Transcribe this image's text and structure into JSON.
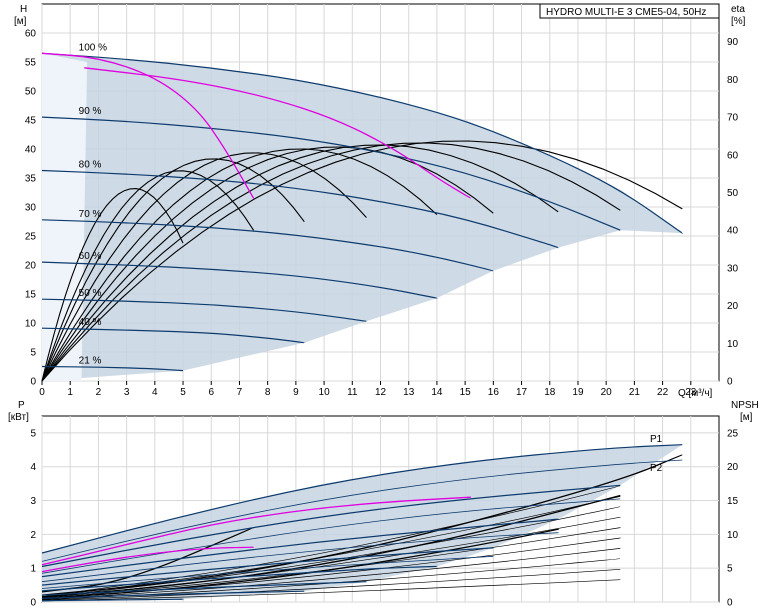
{
  "chart_data": [
    {
      "type": "line",
      "panel": "head-flow",
      "title": "HYDRO MULTI-E 3 CME5-04, 50Hz",
      "ylabel_left": "H",
      "ylabel_left_unit": "[м]",
      "ylabel_right": "eta",
      "ylabel_right_unit": "[%]",
      "xlabel": "Q [м³/ч]",
      "xlim": [
        0,
        24
      ],
      "ylim_left": [
        0,
        65
      ],
      "ylim_right": [
        0,
        100
      ],
      "x_ticks": [
        0,
        1,
        2,
        3,
        4,
        5,
        6,
        7,
        8,
        9,
        10,
        11,
        12,
        13,
        14,
        15,
        16,
        17,
        18,
        19,
        20,
        21,
        22,
        23
      ],
      "y_ticks_left": [
        0,
        5,
        10,
        15,
        20,
        25,
        30,
        35,
        40,
        45,
        50,
        55,
        60
      ],
      "y_ticks_right": [
        0,
        10,
        20,
        30,
        40,
        50,
        60,
        70,
        80,
        90
      ],
      "grid": true,
      "colors": {
        "pump": "#0d3b6e",
        "fill": "#c5d3e2",
        "system": "#e000e0",
        "eta": "#000000"
      },
      "speed_curves": [
        {
          "label": "100 %",
          "points": [
            [
              0,
              56.5
            ],
            [
              3,
              55.5
            ],
            [
              6,
              54
            ],
            [
              9,
              52
            ],
            [
              12,
              49
            ],
            [
              15,
              45
            ],
            [
              18,
              39
            ],
            [
              20.5,
              33
            ],
            [
              22.7,
              25.5
            ]
          ]
        },
        {
          "label": "90 %",
          "points": [
            [
              0,
              45.5
            ],
            [
              3,
              44.8
            ],
            [
              6,
              43.6
            ],
            [
              9,
              42
            ],
            [
              12,
              39.5
            ],
            [
              15,
              36
            ],
            [
              18,
              31
            ],
            [
              20.5,
              26
            ]
          ]
        },
        {
          "label": "80 %",
          "points": [
            [
              0,
              36.3
            ],
            [
              3,
              35.7
            ],
            [
              6,
              34.8
            ],
            [
              9,
              33.3
            ],
            [
              12,
              31
            ],
            [
              15,
              28
            ],
            [
              18,
              23.5
            ],
            [
              18.3,
              23
            ]
          ]
        },
        {
          "label": "70 %",
          "points": [
            [
              0,
              27.8
            ],
            [
              3,
              27.3
            ],
            [
              6,
              26.5
            ],
            [
              9,
              25.2
            ],
            [
              12,
              23.2
            ],
            [
              14,
              21.4
            ],
            [
              16,
              19
            ]
          ]
        },
        {
          "label": "60 %",
          "points": [
            [
              0,
              20.5
            ],
            [
              3,
              20
            ],
            [
              6,
              19.3
            ],
            [
              9,
              18.2
            ],
            [
              12,
              16.2
            ],
            [
              14,
              14.3
            ]
          ]
        },
        {
          "label": "50 %",
          "points": [
            [
              0,
              14.1
            ],
            [
              3,
              13.8
            ],
            [
              6,
              13.2
            ],
            [
              9,
              12
            ],
            [
              11.5,
              10.3
            ]
          ]
        },
        {
          "label": "40 %",
          "points": [
            [
              0,
              9.1
            ],
            [
              3,
              8.8
            ],
            [
              6,
              8.3
            ],
            [
              8,
              7.4
            ],
            [
              9.3,
              6.6
            ]
          ]
        },
        {
          "label": "21 %",
          "points": [
            [
              0,
              2.5
            ],
            [
              2,
              2.4
            ],
            [
              4,
              2.1
            ],
            [
              5,
              1.8
            ]
          ]
        }
      ],
      "system_curves": [
        {
          "points": [
            [
              0,
              56.5
            ],
            [
              2,
              55.8
            ],
            [
              4,
              52.5
            ],
            [
              5.5,
              47
            ],
            [
              6.5,
              40
            ],
            [
              7.5,
              31.5
            ]
          ]
        },
        {
          "points": [
            [
              1.5,
              54
            ],
            [
              5,
              52
            ],
            [
              8,
              49
            ],
            [
              10.5,
              45
            ],
            [
              12.5,
              40
            ],
            [
              14,
              35
            ],
            [
              15.2,
              31.5
            ]
          ]
        }
      ],
      "eta_curves": [
        {
          "peak": 48.5,
          "qmax": 5.0
        },
        {
          "peak": 53,
          "qmax": 7.5
        },
        {
          "peak": 56,
          "qmax": 9.3
        },
        {
          "peak": 57.5,
          "qmax": 11.5
        },
        {
          "peak": 58.5,
          "qmax": 14
        },
        {
          "peak": 59,
          "qmax": 16
        },
        {
          "peak": 59.5,
          "qmax": 18.3
        },
        {
          "peak": 60,
          "qmax": 20.5
        },
        {
          "peak": 60.5,
          "qmax": 22.7
        }
      ]
    },
    {
      "type": "line",
      "panel": "power-npsh",
      "ylabel_left": "P",
      "ylabel_left_unit": "[кВт]",
      "ylabel_right": "NPSH",
      "ylabel_right_unit": "[м]",
      "xlim": [
        0,
        24
      ],
      "ylim_left": [
        0,
        5.5
      ],
      "ylim_right": [
        0,
        27.5
      ],
      "y_ticks_left": [
        0,
        1,
        2,
        3,
        4,
        5
      ],
      "y_ticks_right": [
        0,
        5,
        10,
        15,
        20,
        25
      ],
      "grid": true,
      "series_labels": [
        "P1",
        "P2"
      ],
      "p1_curves": [
        {
          "points": [
            [
              0,
              1.45
            ],
            [
              5,
              2.55
            ],
            [
              10,
              3.5
            ],
            [
              15,
              4.15
            ],
            [
              20,
              4.55
            ],
            [
              22.7,
              4.65
            ]
          ]
        },
        {
          "points": [
            [
              0,
              1.05
            ],
            [
              5,
              1.85
            ],
            [
              10,
              2.55
            ],
            [
              15,
              3.05
            ],
            [
              20.5,
              3.45
            ]
          ]
        },
        {
          "points": [
            [
              0,
              0.75
            ],
            [
              5,
              1.3
            ],
            [
              10,
              1.8
            ],
            [
              15,
              2.2
            ],
            [
              18.3,
              2.45
            ]
          ]
        },
        {
          "points": [
            [
              0,
              0.5
            ],
            [
              5,
              0.9
            ],
            [
              10,
              1.25
            ],
            [
              14,
              1.5
            ],
            [
              16,
              1.6
            ]
          ]
        },
        {
          "points": [
            [
              0,
              0.33
            ],
            [
              4,
              0.58
            ],
            [
              8,
              0.8
            ],
            [
              12,
              1.0
            ],
            [
              14,
              1.05
            ]
          ]
        },
        {
          "points": [
            [
              0,
              0.2
            ],
            [
              4,
              0.36
            ],
            [
              8,
              0.5
            ],
            [
              11.5,
              0.6
            ]
          ]
        },
        {
          "points": [
            [
              0,
              0.11
            ],
            [
              3,
              0.19
            ],
            [
              6,
              0.26
            ],
            [
              9.3,
              0.32
            ]
          ]
        },
        {
          "points": [
            [
              0,
              0.04
            ],
            [
              2.5,
              0.06
            ],
            [
              5,
              0.08
            ]
          ]
        }
      ],
      "p2_curves": [
        {
          "points": [
            [
              0,
              1.2
            ],
            [
              5,
              2.2
            ],
            [
              10,
              3.05
            ],
            [
              15,
              3.65
            ],
            [
              20,
              4.05
            ],
            [
              22.7,
              4.2
            ]
          ]
        },
        {
          "points": [
            [
              0,
              0.85
            ],
            [
              5,
              1.55
            ],
            [
              10,
              2.2
            ],
            [
              15,
              2.7
            ],
            [
              20.5,
              3.05
            ]
          ]
        },
        {
          "points": [
            [
              0,
              0.6
            ],
            [
              5,
              1.1
            ],
            [
              10,
              1.55
            ],
            [
              15,
              1.9
            ],
            [
              18.3,
              2.05
            ]
          ]
        },
        {
          "points": [
            [
              0,
              0.4
            ],
            [
              5,
              0.75
            ],
            [
              10,
              1.05
            ],
            [
              16,
              1.35
            ]
          ]
        }
      ],
      "system_power": [
        {
          "points": [
            [
              0,
              0.9
            ],
            [
              2,
              1.2
            ],
            [
              4,
              1.45
            ],
            [
              6,
              1.6
            ],
            [
              7.5,
              1.62
            ]
          ]
        },
        {
          "points": [
            [
              0,
              1.1
            ],
            [
              3,
              1.7
            ],
            [
              6,
              2.3
            ],
            [
              9,
              2.7
            ],
            [
              12,
              2.95
            ],
            [
              15.2,
              3.1
            ]
          ]
        }
      ],
      "npsh_curves": [
        {
          "points": [
            [
              0,
              0.3
            ],
            [
              3,
              0.6
            ],
            [
              7.5,
              2.2
            ]
          ]
        },
        {
          "points": [
            [
              0,
              0.2
            ],
            [
              5,
              0.6
            ],
            [
              10,
              1.3
            ],
            [
              15,
              2.3
            ],
            [
              20.5,
              3.6
            ],
            [
              22.7,
              4.35
            ]
          ]
        },
        {
          "points": [
            [
              0,
              0.15
            ],
            [
              5,
              0.5
            ],
            [
              10,
              1.1
            ],
            [
              15,
              1.95
            ],
            [
              20.5,
              3.15
            ]
          ]
        },
        {
          "points": [
            [
              0,
              0.1
            ],
            [
              5,
              0.4
            ],
            [
              10,
              0.9
            ],
            [
              15,
              1.6
            ],
            [
              18.3,
              2.15
            ]
          ]
        }
      ]
    }
  ]
}
